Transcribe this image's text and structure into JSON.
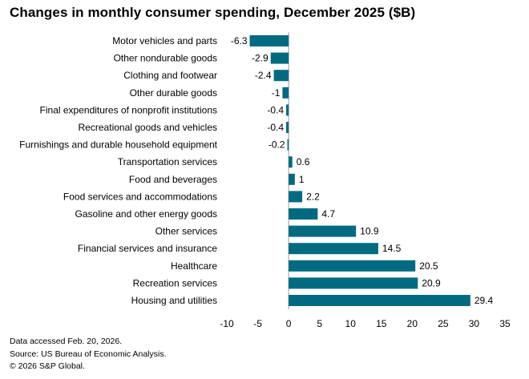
{
  "title": "Changes in monthly consumer spending, December 2025 ($B)",
  "chart_data": {
    "type": "bar",
    "orientation": "horizontal",
    "title": "Changes in monthly consumer spending, December 2025 ($B)",
    "xlabel": "",
    "ylabel": "",
    "xlim": [
      -10,
      35
    ],
    "xticks": [
      -10,
      -5,
      0,
      5,
      10,
      15,
      20,
      25,
      30,
      35
    ],
    "bar_color": "#006b80",
    "categories": [
      "Motor vehicles and parts",
      "Other nondurable goods",
      "Clothing and footwear",
      "Other durable goods",
      "Final expenditures of nonprofit institutions",
      "Recreational goods and vehicles",
      "Furnishings and durable household equipment",
      "Transportation services",
      "Food and beverages",
      "Food services and accommodations",
      "Gasoline and other energy goods",
      "Other services",
      "Financial services and insurance",
      "Healthcare",
      "Recreation services",
      "Housing and utilities"
    ],
    "values": [
      -6.3,
      -2.9,
      -2.4,
      -1,
      -0.4,
      -0.4,
      -0.2,
      0.6,
      1,
      2.2,
      4.7,
      10.9,
      14.5,
      20.5,
      20.9,
      29.4
    ],
    "value_labels": [
      "-6.3",
      "-2.9",
      "-2.4",
      "-1",
      "-0.4",
      "-0.4",
      "-0.2",
      "0.6",
      "1",
      "2.2",
      "4.7",
      "10.9",
      "14.5",
      "20.5",
      "20.9",
      "29.4"
    ]
  },
  "notes": {
    "line1": "Data accessed Feb. 20, 2026.",
    "line2": "Source: US Bureau of Economic Analysis.",
    "line3": "© 2026 S&P Global."
  }
}
